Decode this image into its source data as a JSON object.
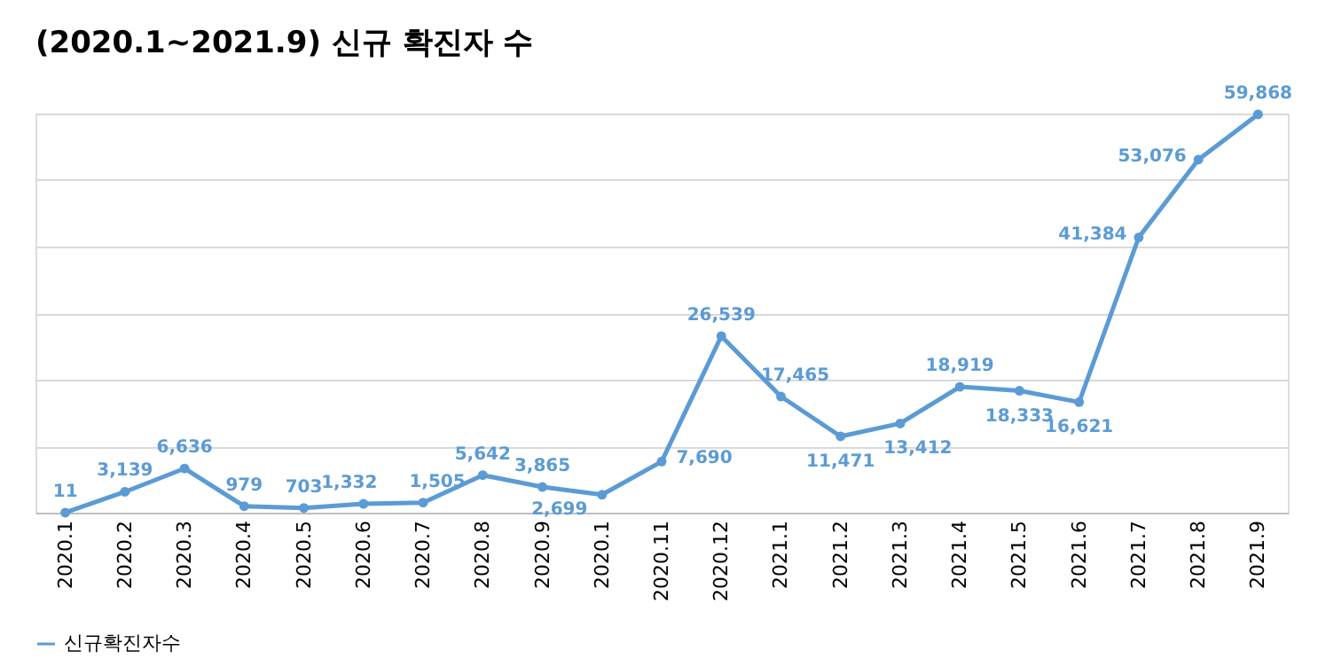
{
  "chart_data": {
    "type": "line",
    "title": "(2020.1~2021.9) 신규 확진자 수",
    "categories": [
      "2020.1",
      "2020.2",
      "2020.3",
      "2020.4",
      "2020.5",
      "2020.6",
      "2020.7",
      "2020.8",
      "2020.9",
      "2020.1",
      "2020.11",
      "2020.12",
      "2021.1",
      "2021.2",
      "2021.3",
      "2021.4",
      "2021.5",
      "2021.6",
      "2021.7",
      "2021.8",
      "2021.9"
    ],
    "series": [
      {
        "name": "신규확진자수",
        "color": "#5b9bd5",
        "values": [
          11,
          3139,
          6636,
          979,
          703,
          1332,
          1505,
          5642,
          3865,
          2699,
          7690,
          26539,
          17465,
          11471,
          13412,
          18919,
          18333,
          16621,
          41384,
          53076,
          59868
        ],
        "value_labels": [
          "11",
          "3,139",
          "6,636",
          "979",
          "703",
          "1,332",
          "1,505",
          "5,642",
          "3,865",
          "2,699",
          "7,690",
          "26,539",
          "17,465",
          "11,471",
          "13,412",
          "18,919",
          "18,333",
          "16,621",
          "41,384",
          "53,076",
          "59,868"
        ]
      }
    ],
    "ylim": [
      0,
      60000
    ],
    "tick_labels": "x",
    "grid": "y",
    "legend": "bottom",
    "marker": "circle",
    "line_style": "solid"
  }
}
